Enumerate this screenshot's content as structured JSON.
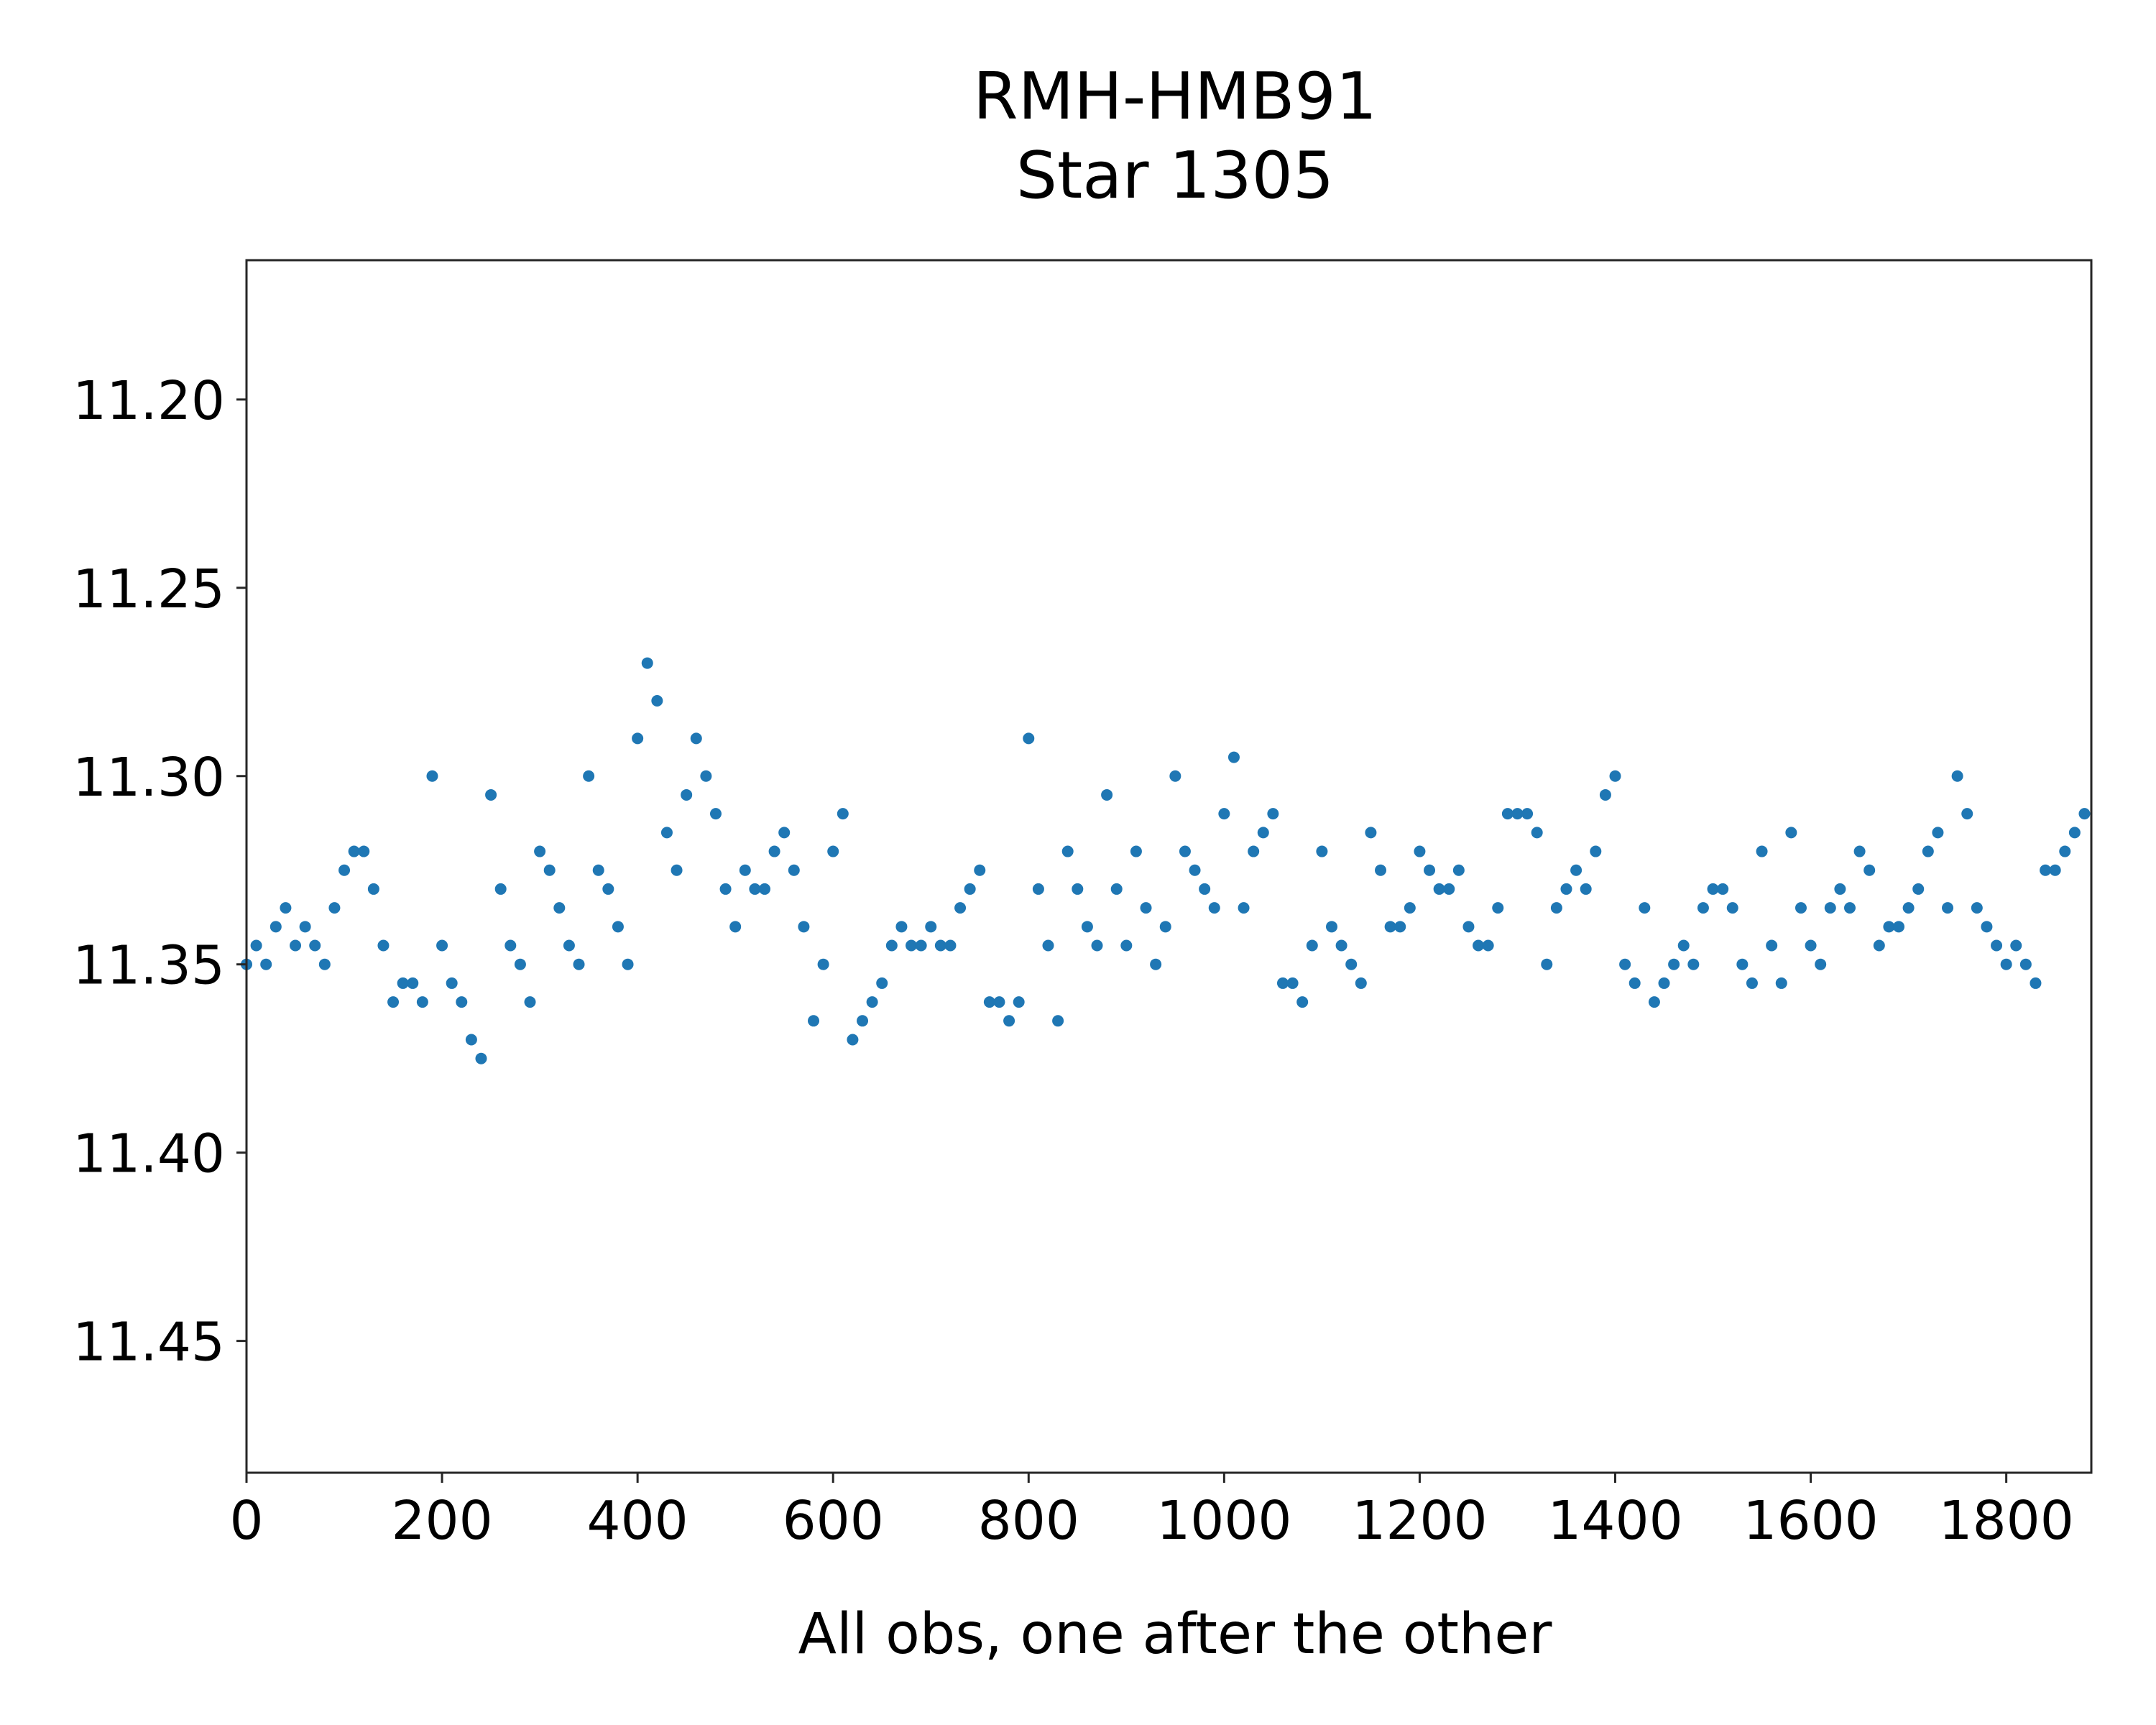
{
  "chart_data": {
    "type": "scatter",
    "title_lines": [
      "RMH-HMB91",
      "Star 1305"
    ],
    "xlabel": "All obs, one after the other",
    "ylabel": "",
    "xlim": [
      0,
      1887
    ],
    "ylim": [
      11.485,
      11.163
    ],
    "y_inverted": true,
    "grid": false,
    "color": "#1f77b4",
    "xticks": [
      0,
      200,
      400,
      600,
      800,
      1000,
      1200,
      1400,
      1600,
      1800
    ],
    "xtick_labels": [
      "0",
      "200",
      "400",
      "600",
      "800",
      "1000",
      "1200",
      "1400",
      "1600",
      "1800"
    ],
    "yticks": [
      11.2,
      11.25,
      11.3,
      11.35,
      11.4,
      11.45
    ],
    "ytick_labels": [
      "11.20",
      "11.25",
      "11.30",
      "11.35",
      "11.40",
      "11.45"
    ],
    "x_start": 0,
    "x_step": 10,
    "y": [
      11.35,
      11.345,
      11.35,
      11.34,
      11.335,
      11.345,
      11.34,
      11.345,
      11.35,
      11.335,
      11.325,
      11.32,
      11.32,
      11.33,
      11.345,
      11.36,
      11.355,
      11.355,
      11.36,
      11.3,
      11.345,
      11.355,
      11.36,
      11.37,
      11.375,
      11.305,
      11.33,
      11.345,
      11.35,
      11.36,
      11.32,
      11.325,
      11.335,
      11.345,
      11.35,
      11.3,
      11.325,
      11.33,
      11.34,
      11.35,
      11.29,
      11.27,
      11.28,
      11.315,
      11.325,
      11.305,
      11.29,
      11.3,
      11.31,
      11.33,
      11.34,
      11.325,
      11.33,
      11.33,
      11.32,
      11.315,
      11.325,
      11.34,
      11.365,
      11.35,
      11.32,
      11.31,
      11.37,
      11.365,
      11.36,
      11.355,
      11.345,
      11.34,
      11.345,
      11.345,
      11.34,
      11.345,
      11.345,
      11.335,
      11.33,
      11.325,
      11.36,
      11.36,
      11.365,
      11.36,
      11.29,
      11.33,
      11.345,
      11.365,
      11.32,
      11.33,
      11.34,
      11.345,
      11.305,
      11.33,
      11.345,
      11.32,
      11.335,
      11.35,
      11.34,
      11.3,
      11.32,
      11.325,
      11.33,
      11.335,
      11.31,
      11.295,
      11.335,
      11.32,
      11.315,
      11.31,
      11.355,
      11.355,
      11.36,
      11.345,
      11.32,
      11.34,
      11.345,
      11.35,
      11.355,
      11.315,
      11.325,
      11.34,
      11.34,
      11.335,
      11.32,
      11.325,
      11.33,
      11.33,
      11.325,
      11.34,
      11.345,
      11.345,
      11.335,
      11.31,
      11.31,
      11.31,
      11.315,
      11.35,
      11.335,
      11.33,
      11.325,
      11.33,
      11.32,
      11.305,
      11.3,
      11.35,
      11.355,
      11.335,
      11.36,
      11.355,
      11.35,
      11.345,
      11.35,
      11.335,
      11.33,
      11.33,
      11.335,
      11.35,
      11.355,
      11.32,
      11.345,
      11.355,
      11.315,
      11.335,
      11.345,
      11.35,
      11.335,
      11.33,
      11.335,
      11.32,
      11.325,
      11.345,
      11.34,
      11.34,
      11.335,
      11.33,
      11.32,
      11.315,
      11.335,
      11.3,
      11.31,
      11.335,
      11.34,
      11.345,
      11.35,
      11.345,
      11.35,
      11.355,
      11.325,
      11.325,
      11.32,
      11.315,
      11.31
    ]
  }
}
